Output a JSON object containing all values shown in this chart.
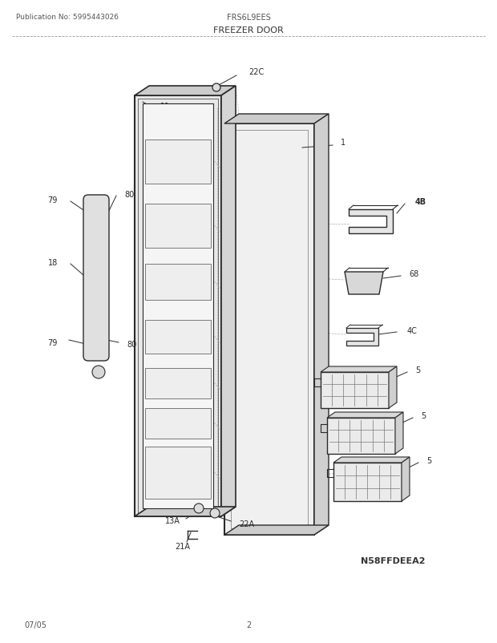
{
  "title": "FREEZER DOOR",
  "pub_no": "Publication No: 5995443026",
  "model": "FRS6L9EES",
  "date": "07/05",
  "page": "2",
  "image_code": "N58FFDEEA2",
  "bg_color": "#ffffff",
  "line_color": "#2a2a2a",
  "text_color": "#2a2a2a",
  "gray_color": "#888888"
}
